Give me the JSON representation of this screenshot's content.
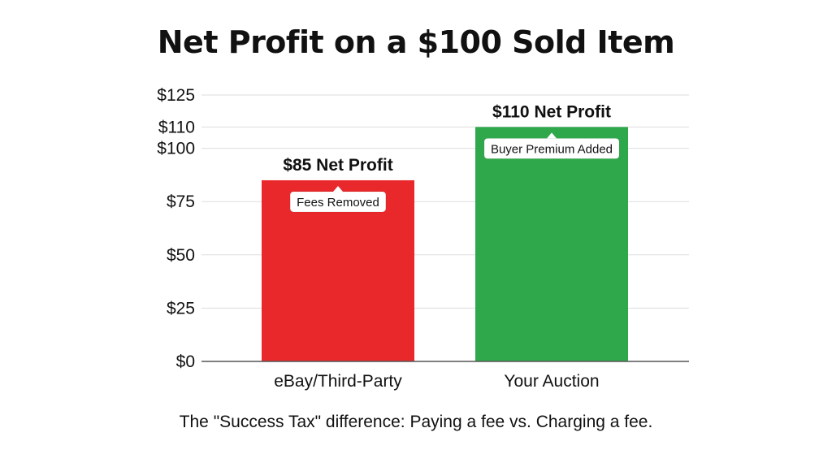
{
  "chart_data": {
    "type": "bar",
    "title": "Net Profit on a $100 Sold Item",
    "caption": "The \"Success Tax\" difference: Paying a fee vs. Charging a fee.",
    "categories": [
      "eBay/Third-Party",
      "Your Auction"
    ],
    "values": [
      85,
      110
    ],
    "bar_colors": [
      "#e8282b",
      "#2ea84a"
    ],
    "data_labels": [
      "$85 Net Profit",
      "$110 Net Profit"
    ],
    "annotations": [
      "Fees Removed",
      "Buyer Premium Added"
    ],
    "ylim": [
      0,
      125
    ],
    "yticks": [
      0,
      25,
      50,
      75,
      100,
      110,
      125
    ],
    "ytick_labels": [
      "$0",
      "$25",
      "$50",
      "$75",
      "$100",
      "$110",
      "$125"
    ],
    "xlabel": "",
    "ylabel": "",
    "grid": true,
    "gridline_color": "#dddddd",
    "axis_color": "#555555"
  }
}
